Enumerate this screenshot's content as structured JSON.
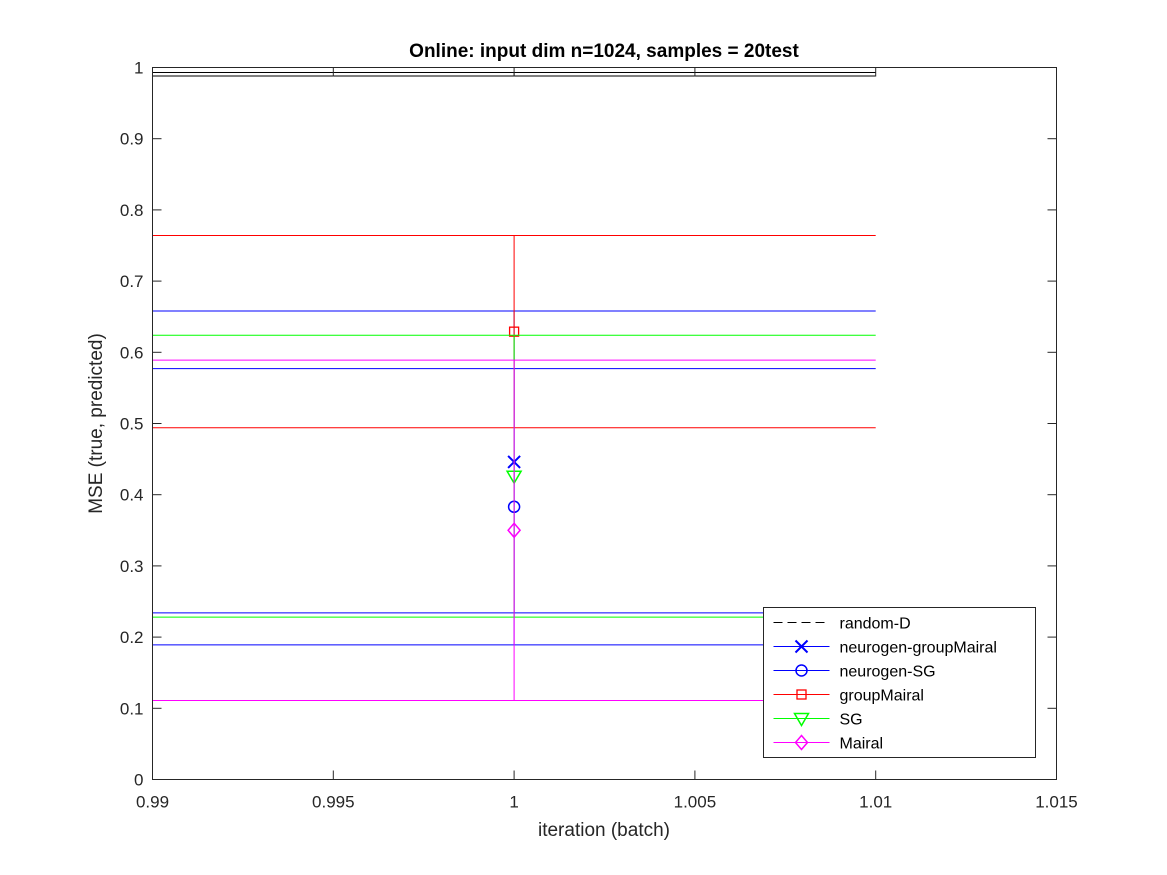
{
  "chart_data": {
    "type": "line",
    "title": "Online:  input dim n=1024, samples = 20test",
    "xlabel": "iteration (batch)",
    "ylabel": "MSE (true, predicted)",
    "xlim": [
      0.99,
      1.015
    ],
    "ylim": [
      0,
      1
    ],
    "xticks": [
      0.99,
      0.995,
      1,
      1.005,
      1.01,
      1.015
    ],
    "xtick_labels": [
      "0.99",
      "0.995",
      "1",
      "1.005",
      "1.01",
      "1.015"
    ],
    "yticks": [
      0,
      0.1,
      0.2,
      0.3,
      0.4,
      0.5,
      0.6,
      0.7,
      0.8,
      0.9,
      1
    ],
    "ytick_labels": [
      "0",
      "0.1",
      "0.2",
      "0.3",
      "0.4",
      "0.5",
      "0.6",
      "0.7",
      "0.8",
      "0.9",
      "1"
    ],
    "grid": false,
    "legend_position": "bottom-right",
    "errorbar_cap_range": [
      0.99,
      1.01
    ],
    "series": [
      {
        "name": "random-D",
        "color": "#000000",
        "marker": "none",
        "linestyle": "dashed",
        "x": [
          1
        ],
        "y": [
          0.99
        ],
        "err_low": 0.988,
        "err_high": 0.993
      },
      {
        "name": "neurogen-groupMairal",
        "color": "#0000ff",
        "marker": "x",
        "x": [
          1
        ],
        "y": [
          0.446
        ],
        "err_low": 0.234,
        "err_high": 0.658
      },
      {
        "name": "neurogen-SG",
        "color": "#0000ff",
        "marker": "circle",
        "x": [
          1
        ],
        "y": [
          0.383
        ],
        "err_low": 0.189,
        "err_high": 0.577
      },
      {
        "name": "groupMairal",
        "color": "#ff0000",
        "marker": "square",
        "x": [
          1
        ],
        "y": [
          0.629
        ],
        "err_low": 0.494,
        "err_high": 0.764
      },
      {
        "name": "SG",
        "color": "#00ff00",
        "marker": "triangle-down",
        "x": [
          1
        ],
        "y": [
          0.426
        ],
        "err_low": 0.228,
        "err_high": 0.624
      },
      {
        "name": "Mairal",
        "color": "#ff00ff",
        "marker": "diamond",
        "x": [
          1
        ],
        "y": [
          0.35
        ],
        "err_low": 0.111,
        "err_high": 0.589
      }
    ]
  }
}
